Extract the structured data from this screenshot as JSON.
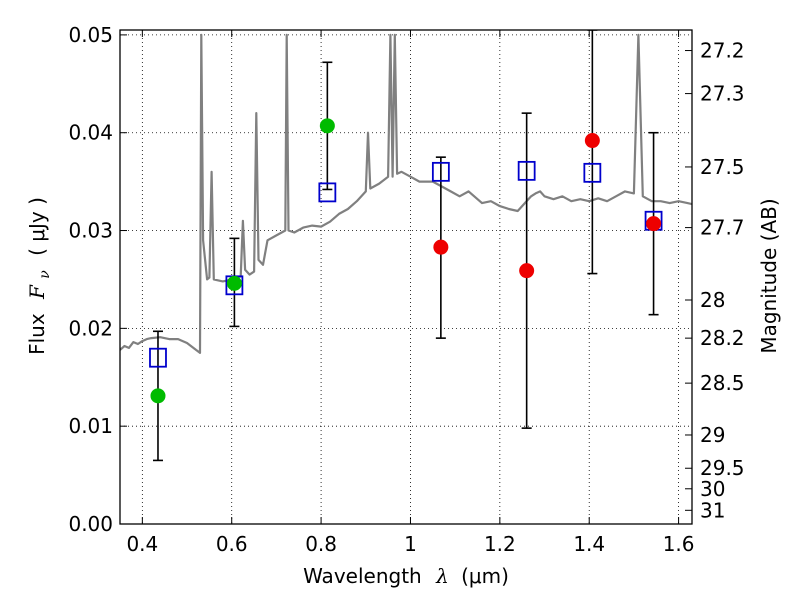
{
  "chart_data": {
    "type": "scatter",
    "title": "",
    "xlabel": "Wavelength",
    "xlabel_symbol": "λ",
    "xlabel_unit": "(μm)",
    "ylabel": "Flux",
    "ylabel_symbol": "F",
    "ylabel_subscript": "ν",
    "ylabel_unit": "( μJy )",
    "y2label": "Magnitude (AB)",
    "xlim": [
      0.35,
      1.63
    ],
    "ylim": [
      0.0,
      0.0505
    ],
    "grid": true,
    "x_ticks": [
      0.4,
      0.6,
      0.8,
      1.0,
      1.2,
      1.4,
      1.6
    ],
    "x_tick_labels": [
      "0.4",
      "0.6",
      "0.8",
      "1",
      "1.2",
      "1.4",
      "1.6"
    ],
    "y_ticks": [
      0.0,
      0.01,
      0.02,
      0.03,
      0.04,
      0.05
    ],
    "y_tick_labels": [
      "0.00",
      "0.01",
      "0.02",
      "0.03",
      "0.04",
      "0.05"
    ],
    "mag_ticks": [
      {
        "flux": 0.0484,
        "label": "27.2"
      },
      {
        "flux": 0.044,
        "label": "27.3"
      },
      {
        "flux": 0.0365,
        "label": "27.5"
      },
      {
        "flux": 0.0303,
        "label": "27.7"
      },
      {
        "flux": 0.0229,
        "label": "28"
      },
      {
        "flux": 0.019,
        "label": "28.2"
      },
      {
        "flux": 0.0144,
        "label": "28.5"
      },
      {
        "flux": 0.0091,
        "label": "29"
      },
      {
        "flux": 0.0057,
        "label": "29.5"
      },
      {
        "flux": 0.0036,
        "label": "30"
      },
      {
        "flux": 0.0014,
        "label": "31"
      }
    ],
    "colors": {
      "spectrum": "#808080",
      "model": "#0000cc",
      "detected": "#00bb00",
      "upper": "#ee0000",
      "errorbar": "#000000"
    },
    "spectrum": [
      [
        0.35,
        0.0178
      ],
      [
        0.36,
        0.0182
      ],
      [
        0.37,
        0.018
      ],
      [
        0.38,
        0.0186
      ],
      [
        0.39,
        0.0184
      ],
      [
        0.4,
        0.0187
      ],
      [
        0.41,
        0.0189
      ],
      [
        0.42,
        0.019
      ],
      [
        0.44,
        0.0191
      ],
      [
        0.46,
        0.0189
      ],
      [
        0.48,
        0.0189
      ],
      [
        0.5,
        0.0185
      ],
      [
        0.52,
        0.0178
      ],
      [
        0.529,
        0.0175
      ],
      [
        0.532,
        0.05
      ],
      [
        0.536,
        0.029
      ],
      [
        0.545,
        0.025
      ],
      [
        0.55,
        0.0252
      ],
      [
        0.555,
        0.036
      ],
      [
        0.56,
        0.025
      ],
      [
        0.58,
        0.0248
      ],
      [
        0.6,
        0.025
      ],
      [
        0.62,
        0.0253
      ],
      [
        0.625,
        0.031
      ],
      [
        0.63,
        0.026
      ],
      [
        0.64,
        0.0255
      ],
      [
        0.65,
        0.0258
      ],
      [
        0.655,
        0.042
      ],
      [
        0.66,
        0.027
      ],
      [
        0.67,
        0.0265
      ],
      [
        0.68,
        0.029
      ],
      [
        0.7,
        0.0295
      ],
      [
        0.72,
        0.03
      ],
      [
        0.723,
        0.05
      ],
      [
        0.727,
        0.03
      ],
      [
        0.74,
        0.0298
      ],
      [
        0.76,
        0.0303
      ],
      [
        0.78,
        0.0305
      ],
      [
        0.8,
        0.0304
      ],
      [
        0.82,
        0.0309
      ],
      [
        0.84,
        0.0317
      ],
      [
        0.86,
        0.0322
      ],
      [
        0.88,
        0.033
      ],
      [
        0.9,
        0.034
      ],
      [
        0.905,
        0.04
      ],
      [
        0.91,
        0.0343
      ],
      [
        0.93,
        0.0348
      ],
      [
        0.95,
        0.0355
      ],
      [
        0.955,
        0.05
      ],
      [
        0.96,
        0.0355
      ],
      [
        0.965,
        0.05
      ],
      [
        0.97,
        0.0358
      ],
      [
        0.98,
        0.036
      ],
      [
        1.0,
        0.0355
      ],
      [
        1.02,
        0.035
      ],
      [
        1.05,
        0.035
      ],
      [
        1.07,
        0.0345
      ],
      [
        1.09,
        0.034
      ],
      [
        1.11,
        0.0335
      ],
      [
        1.13,
        0.034
      ],
      [
        1.16,
        0.0328
      ],
      [
        1.18,
        0.033
      ],
      [
        1.2,
        0.0325
      ],
      [
        1.22,
        0.0322
      ],
      [
        1.24,
        0.032
      ],
      [
        1.27,
        0.0335
      ],
      [
        1.28,
        0.0338
      ],
      [
        1.29,
        0.034
      ],
      [
        1.3,
        0.0335
      ],
      [
        1.32,
        0.0332
      ],
      [
        1.34,
        0.0335
      ],
      [
        1.36,
        0.033
      ],
      [
        1.38,
        0.0332
      ],
      [
        1.4,
        0.033
      ],
      [
        1.42,
        0.0333
      ],
      [
        1.44,
        0.033
      ],
      [
        1.46,
        0.0335
      ],
      [
        1.48,
        0.034
      ],
      [
        1.5,
        0.0338
      ],
      [
        1.51,
        0.05
      ],
      [
        1.52,
        0.0335
      ],
      [
        1.54,
        0.033
      ],
      [
        1.56,
        0.033
      ],
      [
        1.58,
        0.0328
      ],
      [
        1.6,
        0.033
      ],
      [
        1.62,
        0.0328
      ],
      [
        1.63,
        0.0327
      ]
    ],
    "model_points": [
      {
        "x": 0.435,
        "y": 0.017
      },
      {
        "x": 0.606,
        "y": 0.0244
      },
      {
        "x": 0.814,
        "y": 0.0339
      },
      {
        "x": 1.068,
        "y": 0.036
      },
      {
        "x": 1.26,
        "y": 0.0361
      },
      {
        "x": 1.407,
        "y": 0.0359
      },
      {
        "x": 1.544,
        "y": 0.031
      }
    ],
    "detections": [
      {
        "x": 0.435,
        "y": 0.0131,
        "err_low": 0.0065,
        "err_high": 0.0197
      },
      {
        "x": 0.606,
        "y": 0.0246,
        "err_low": 0.0202,
        "err_high": 0.0292
      },
      {
        "x": 0.814,
        "y": 0.0407,
        "err_low": 0.0342,
        "err_high": 0.0472
      }
    ],
    "upper_points": [
      {
        "x": 1.068,
        "y": 0.0283,
        "err_low": 0.019,
        "err_high": 0.0375
      },
      {
        "x": 1.26,
        "y": 0.0259,
        "err_low": 0.0098,
        "err_high": 0.042
      },
      {
        "x": 1.407,
        "y": 0.0392,
        "err_low": 0.0256,
        "err_high": 0.0505
      },
      {
        "x": 1.544,
        "y": 0.0307,
        "err_low": 0.0214,
        "err_high": 0.04
      }
    ]
  }
}
